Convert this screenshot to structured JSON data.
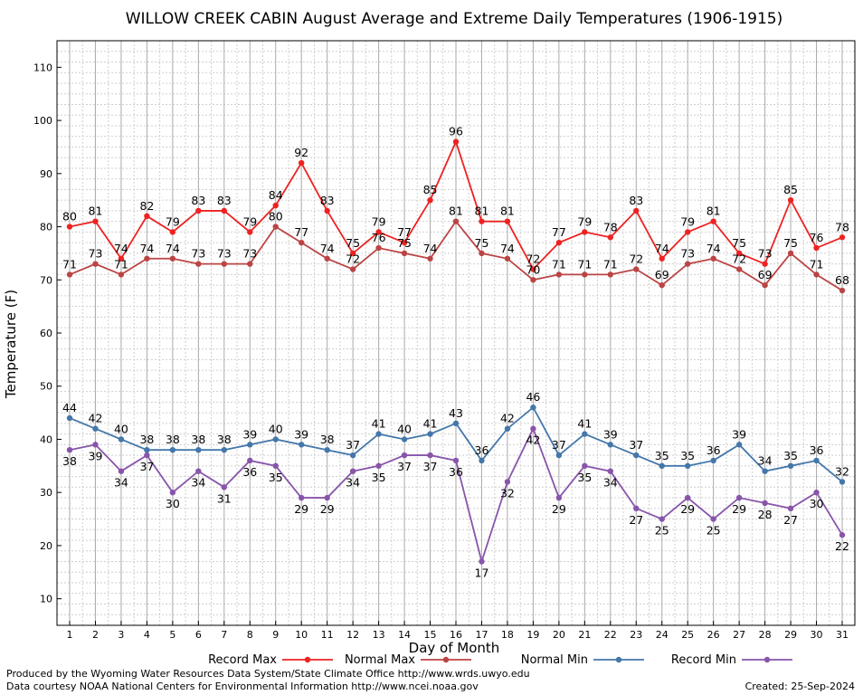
{
  "chart_data": {
    "type": "line",
    "title": "WILLOW CREEK CABIN August Average and Extreme Daily Temperatures (1906-1915)",
    "xlabel": "Day of Month",
    "ylabel": "Temperature (F)",
    "xlim": [
      1,
      31
    ],
    "ylim": [
      5,
      115
    ],
    "x_ticks": [
      1,
      2,
      3,
      4,
      5,
      6,
      7,
      8,
      9,
      10,
      11,
      12,
      13,
      14,
      15,
      16,
      17,
      18,
      19,
      20,
      21,
      22,
      23,
      24,
      25,
      26,
      27,
      28,
      29,
      30,
      31
    ],
    "y_ticks": [
      10,
      20,
      30,
      40,
      50,
      60,
      70,
      80,
      90,
      100,
      110
    ],
    "grid": true,
    "legend_position": "bottom",
    "series": [
      {
        "name": "Record Max",
        "color": "#ee2222",
        "label_position": "above",
        "values": [
          80,
          81,
          74,
          82,
          79,
          83,
          83,
          79,
          84,
          92,
          83,
          75,
          79,
          77,
          85,
          96,
          81,
          81,
          72,
          77,
          79,
          78,
          83,
          74,
          79,
          81,
          75,
          73,
          85,
          76,
          78
        ]
      },
      {
        "name": "Normal Max",
        "color": "#bb4444",
        "label_position": "above",
        "values": [
          71,
          73,
          71,
          74,
          74,
          73,
          73,
          73,
          80,
          77,
          74,
          72,
          76,
          75,
          74,
          81,
          75,
          74,
          70,
          71,
          71,
          71,
          72,
          69,
          73,
          74,
          72,
          69,
          75,
          71,
          68
        ]
      },
      {
        "name": "Normal Min",
        "color": "#4477aa",
        "label_position": "above",
        "values": [
          44,
          42,
          40,
          38,
          38,
          38,
          38,
          39,
          40,
          39,
          38,
          37,
          41,
          40,
          41,
          43,
          36,
          42,
          46,
          37,
          41,
          39,
          37,
          35,
          35,
          36,
          39,
          34,
          35,
          36,
          32
        ]
      },
      {
        "name": "Record Min",
        "color": "#8855aa",
        "label_position": "below",
        "values": [
          38,
          39,
          34,
          37,
          30,
          34,
          31,
          36,
          35,
          29,
          29,
          34,
          35,
          37,
          37,
          36,
          17,
          32,
          42,
          29,
          35,
          34,
          27,
          25,
          29,
          25,
          29,
          28,
          27,
          30,
          22
        ]
      }
    ]
  },
  "footer": {
    "line1": "Produced by the Wyoming Water Resources Data System/State Climate Office http://www.wrds.uwyo.edu",
    "line2": "Data courtesy NOAA National Centers for Environmental Information http://www.ncei.noaa.gov",
    "created": "Created:  25-Sep-2024"
  }
}
